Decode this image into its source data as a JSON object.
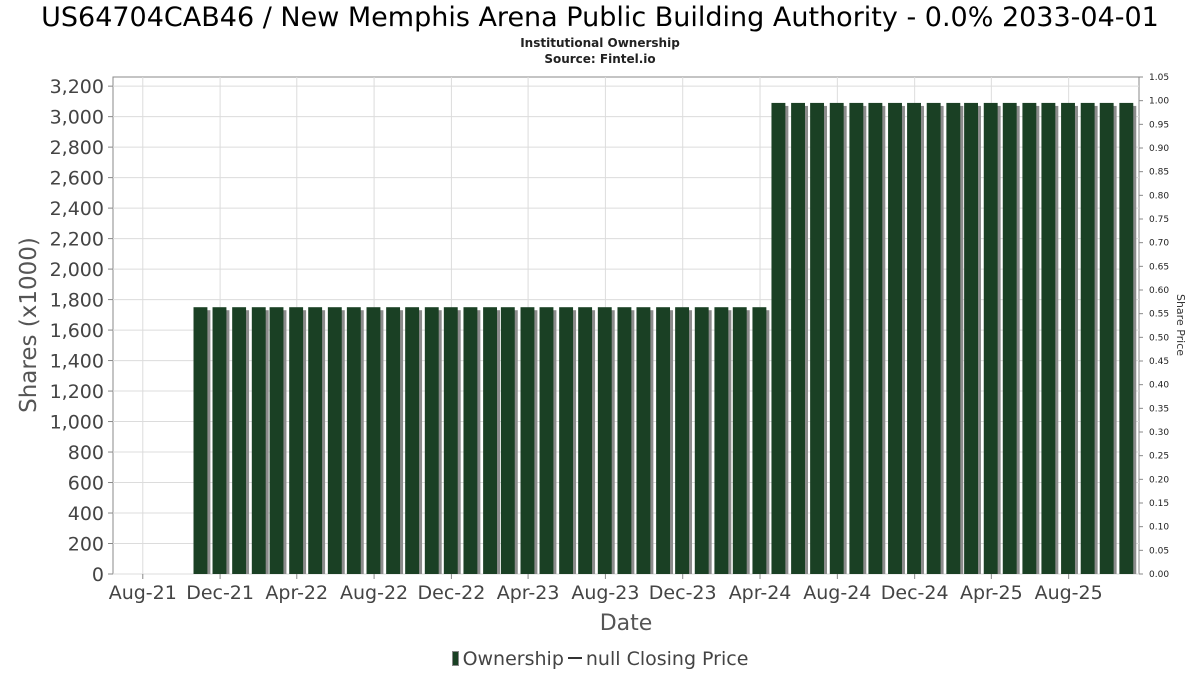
{
  "chart_data": {
    "type": "bar",
    "title": "US64704CAB46 / New Memphis Arena Public Building Authority - 0.0% 2033-04-01",
    "subtitle": [
      "Institutional Ownership",
      "Source: Fintel.io"
    ],
    "xlabel": "Date",
    "ylabel": "Shares (x1000)",
    "y2label": "Share Price",
    "ylim": [
      0,
      3260
    ],
    "y2lim": [
      0,
      1.05
    ],
    "x_range": [
      "2021-06-15",
      "2025-11-20"
    ],
    "y_ticks": [
      0,
      200,
      400,
      600,
      800,
      1000,
      1200,
      1400,
      1600,
      1800,
      2000,
      2200,
      2400,
      2600,
      2800,
      3000,
      3200
    ],
    "y_tick_labels": [
      "0",
      "200",
      "400",
      "600",
      "800",
      "1,000",
      "1,200",
      "1,400",
      "1,600",
      "1,800",
      "2,000",
      "2,200",
      "2,400",
      "2,600",
      "2,800",
      "3,000",
      "3,200"
    ],
    "y2_ticks": [
      "0.00",
      "0.05",
      "0.10",
      "0.15",
      "0.20",
      "0.25",
      "0.30",
      "0.35",
      "0.40",
      "0.45",
      "0.50",
      "0.55",
      "0.60",
      "0.65",
      "0.70",
      "0.75",
      "0.80",
      "0.85",
      "0.90",
      "0.95",
      "1.00",
      "1.05"
    ],
    "x_ticks": [
      {
        "label": "Aug-21",
        "date": "2021-08-01"
      },
      {
        "label": "Dec-21",
        "date": "2021-12-01"
      },
      {
        "label": "Apr-22",
        "date": "2022-04-01"
      },
      {
        "label": "Aug-22",
        "date": "2022-08-01"
      },
      {
        "label": "Dec-22",
        "date": "2022-12-01"
      },
      {
        "label": "Apr-23",
        "date": "2023-04-01"
      },
      {
        "label": "Aug-23",
        "date": "2023-08-01"
      },
      {
        "label": "Dec-23",
        "date": "2023-12-01"
      },
      {
        "label": "Apr-24",
        "date": "2024-04-01"
      },
      {
        "label": "Aug-24",
        "date": "2024-08-01"
      },
      {
        "label": "Dec-24",
        "date": "2024-12-01"
      },
      {
        "label": "Apr-25",
        "date": "2025-04-01"
      },
      {
        "label": "Aug-25",
        "date": "2025-08-01"
      }
    ],
    "series": [
      {
        "name": "Ownership",
        "x": [
          "2021-10-31",
          "2021-11-30",
          "2021-12-31",
          "2022-01-31",
          "2022-02-28",
          "2022-03-31",
          "2022-04-30",
          "2022-05-31",
          "2022-06-30",
          "2022-07-31",
          "2022-08-31",
          "2022-09-30",
          "2022-10-31",
          "2022-11-30",
          "2022-12-31",
          "2023-01-31",
          "2023-02-28",
          "2023-03-31",
          "2023-04-30",
          "2023-05-31",
          "2023-06-30",
          "2023-07-31",
          "2023-08-31",
          "2023-09-30",
          "2023-10-31",
          "2023-11-30",
          "2023-12-31",
          "2024-01-31",
          "2024-02-29",
          "2024-03-31",
          "2024-04-30",
          "2024-05-31",
          "2024-06-30",
          "2024-07-31",
          "2024-08-31",
          "2024-09-30",
          "2024-10-31",
          "2024-11-30",
          "2024-12-31",
          "2025-01-31",
          "2025-02-28",
          "2025-03-31",
          "2025-04-30",
          "2025-05-31",
          "2025-06-30",
          "2025-07-31",
          "2025-08-31",
          "2025-09-30",
          "2025-10-31"
        ],
        "values": [
          1750,
          1750,
          1750,
          1750,
          1750,
          1750,
          1750,
          1750,
          1750,
          1750,
          1750,
          1750,
          1750,
          1750,
          1750,
          1750,
          1750,
          1750,
          1750,
          1750,
          1750,
          1750,
          1750,
          1750,
          1750,
          1750,
          1750,
          1750,
          1750,
          1750,
          3090,
          3090,
          3090,
          3090,
          3090,
          3090,
          3090,
          3090,
          3090,
          3090,
          3090,
          3090,
          3090,
          3090,
          3090,
          3090,
          3090,
          3090,
          3090
        ]
      },
      {
        "name": "null Closing Price",
        "values": []
      }
    ],
    "colors": {
      "bar": "#1a4024",
      "bar_shadow": "#8c8c8c",
      "grid": "#dcdcdc",
      "axis": "#888888"
    }
  },
  "legend": {
    "ownership_label": "Ownership",
    "price_label": "null Closing Price"
  }
}
